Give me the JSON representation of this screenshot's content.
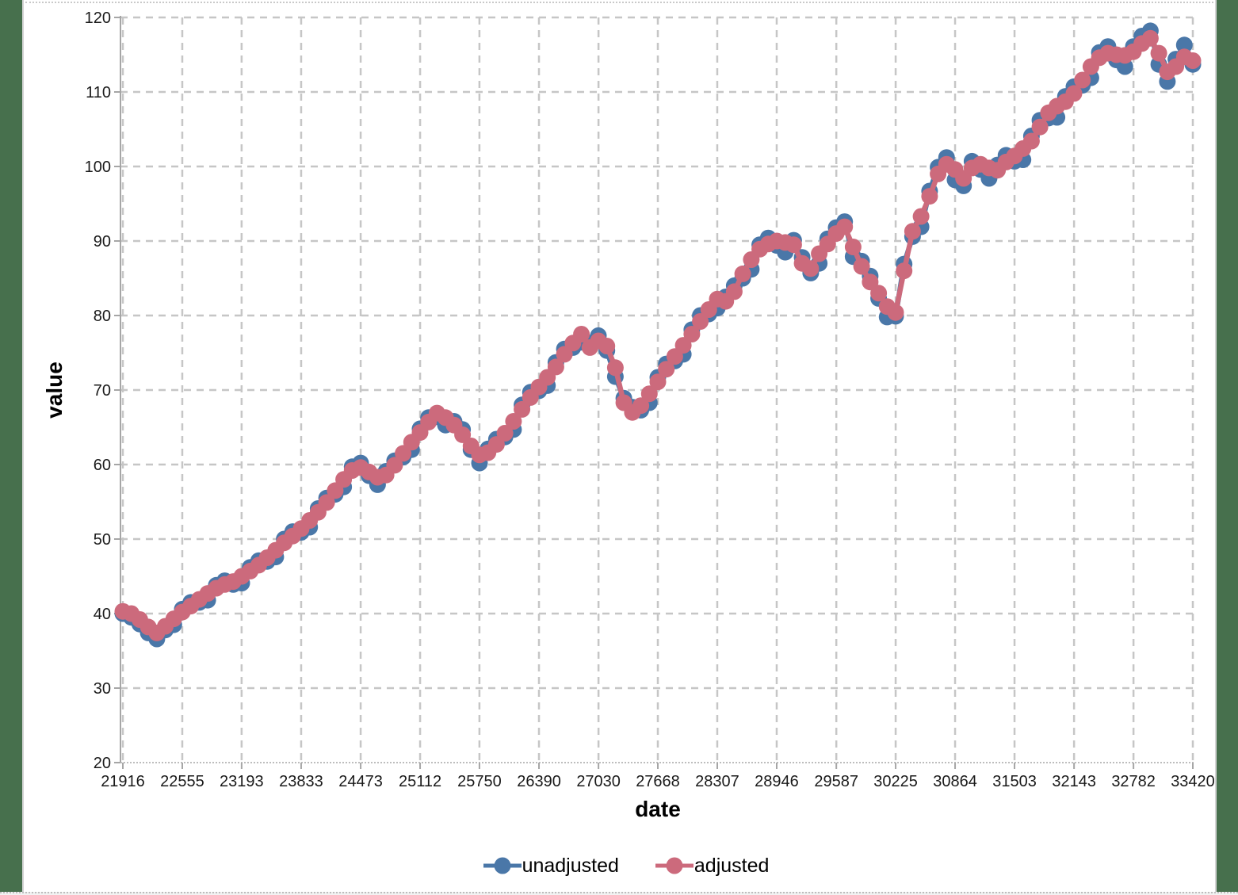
{
  "chart_data": {
    "type": "line",
    "title": "",
    "xlabel": "date",
    "ylabel": "value",
    "x_range": [
      21916,
      33420
    ],
    "ylim": [
      20,
      120
    ],
    "x_ticks": [
      21916,
      22555,
      23193,
      23833,
      24473,
      25112,
      25750,
      26390,
      27030,
      27668,
      28307,
      28946,
      29587,
      30225,
      30864,
      31503,
      32143,
      32782,
      33420
    ],
    "y_ticks": [
      20,
      30,
      40,
      50,
      60,
      70,
      80,
      90,
      100,
      110,
      120
    ],
    "grid": true,
    "grid_style": "dashed",
    "legend_position": "bottom",
    "points_note": "127 points evenly spaced across x_range (quarterly data)",
    "series": [
      {
        "name": "unadjusted",
        "color": "#4a77a8",
        "values": [
          40.0,
          39.5,
          38.6,
          37.4,
          36.6,
          37.8,
          38.5,
          40.6,
          41.5,
          41.5,
          41.8,
          43.8,
          44.4,
          43.9,
          44.1,
          46.2,
          47.1,
          47.0,
          47.6,
          50.0,
          51.0,
          50.9,
          51.6,
          54.1,
          55.5,
          56.0,
          57.0,
          59.7,
          60.2,
          58.5,
          57.3,
          59.1,
          60.5,
          61.0,
          62.0,
          64.8,
          66.3,
          66.4,
          65.3,
          65.8,
          64.7,
          62.0,
          60.2,
          62.1,
          63.4,
          63.7,
          64.7,
          68.0,
          69.7,
          69.9,
          70.6,
          73.7,
          75.5,
          75.7,
          76.4,
          76.3,
          77.3,
          75.3,
          71.8,
          68.9,
          67.7,
          67.3,
          68.3,
          71.7,
          73.5,
          73.9,
          74.8,
          78.1,
          80.0,
          80.2,
          81.0,
          82.5,
          84.0,
          85.0,
          86.2,
          89.5,
          90.4,
          89.4,
          88.5,
          90.1,
          87.8,
          85.7,
          87.0,
          90.3,
          91.8,
          92.6,
          87.9,
          87.3,
          85.3,
          82.3,
          79.8,
          79.9,
          86.9,
          90.6,
          91.9,
          96.7,
          99.9,
          101.2,
          98.2,
          97.4,
          100.7,
          99.6,
          98.4,
          100.2,
          101.5,
          100.7,
          100.9,
          104.1,
          106.2,
          106.5,
          106.6,
          109.4,
          110.7,
          110.9,
          111.9,
          115.3,
          116.1,
          114.3,
          113.4,
          116.1,
          117.5,
          118.2,
          113.7,
          111.4,
          114.4,
          116.3,
          113.7
        ]
      },
      {
        "name": "adjusted",
        "color": "#cc6a7c",
        "values": [
          40.3,
          40.0,
          39.2,
          38.2,
          37.4,
          38.3,
          39.3,
          40.2,
          41.0,
          41.9,
          42.7,
          43.4,
          43.9,
          44.3,
          45.0,
          45.7,
          46.5,
          47.5,
          48.5,
          49.5,
          50.4,
          51.4,
          52.5,
          53.6,
          54.9,
          56.5,
          58.0,
          59.2,
          59.6,
          59.0,
          58.3,
          58.6,
          59.9,
          61.5,
          63.0,
          64.3,
          65.7,
          66.9,
          66.3,
          65.3,
          64.0,
          62.5,
          61.3,
          61.6,
          62.7,
          64.2,
          65.8,
          67.4,
          69.0,
          70.4,
          71.7,
          73.1,
          74.8,
          76.3,
          77.5,
          75.7,
          76.6,
          75.9,
          73.0,
          68.3,
          67.0,
          67.9,
          69.5,
          71.1,
          72.8,
          74.5,
          76.0,
          77.5,
          79.2,
          80.8,
          82.2,
          81.9,
          83.2,
          85.6,
          87.5,
          88.9,
          89.6,
          90.0,
          89.8,
          89.5,
          87.0,
          86.3,
          88.3,
          89.6,
          91.0,
          91.9,
          89.2,
          86.6,
          84.5,
          83.0,
          81.2,
          80.4,
          86.0,
          91.3,
          93.3,
          96.0,
          99.0,
          100.3,
          99.6,
          98.4,
          99.8,
          100.3,
          99.8,
          99.5,
          100.6,
          101.4,
          102.4,
          103.4,
          105.3,
          107.2,
          108.1,
          108.7,
          109.8,
          111.6,
          113.4,
          114.6,
          115.2,
          115.0,
          114.9,
          115.4,
          116.5,
          117.2,
          115.2,
          112.7,
          113.4,
          114.7,
          114.2
        ]
      }
    ]
  },
  "page": {
    "background_color": "#47704d",
    "panel_color": "#ffffff",
    "grid_color": "#c6c6c6",
    "axis_color": "#a6a6a6",
    "tick_label_color": "#1a1a1a"
  }
}
